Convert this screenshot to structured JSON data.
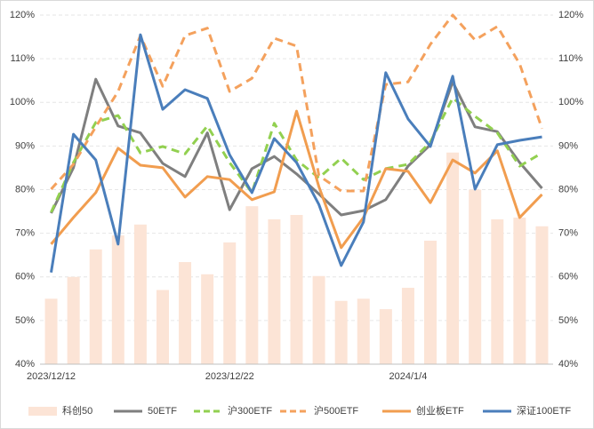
{
  "chart_data": {
    "type": "combo",
    "categories": [
      "2023/12/12",
      null,
      null,
      null,
      null,
      null,
      null,
      null,
      "2023/12/22",
      null,
      null,
      null,
      null,
      null,
      null,
      null,
      "2024/1/4",
      null,
      null,
      null,
      null,
      null,
      null
    ],
    "ylim": [
      40,
      120
    ],
    "yticks": [
      {
        "value": 40,
        "label": "40%"
      },
      {
        "value": 50,
        "label": "50%"
      },
      {
        "value": 60,
        "label": "60%"
      },
      {
        "value": 70,
        "label": "70%"
      },
      {
        "value": 80,
        "label": "80%"
      },
      {
        "value": 90,
        "label": "90%"
      },
      {
        "value": 100,
        "label": "100%"
      },
      {
        "value": 110,
        "label": "110%"
      },
      {
        "value": 120,
        "label": "120%"
      }
    ],
    "y2lim": [
      40,
      120
    ],
    "y2ticks": [
      {
        "value": 40,
        "label": "40%"
      },
      {
        "value": 50,
        "label": "50%"
      },
      {
        "value": 60,
        "label": "60%"
      },
      {
        "value": 70,
        "label": "70%"
      },
      {
        "value": 80,
        "label": "80%"
      },
      {
        "value": 90,
        "label": "90%"
      },
      {
        "value": 100,
        "label": "100%"
      },
      {
        "value": 110,
        "label": "110%"
      },
      {
        "value": 120,
        "label": "120%"
      }
    ],
    "grid": true,
    "legend": "bottom",
    "series": [
      {
        "name": "科创50",
        "kind": "bar",
        "color": "#fce4d6",
        "values": [
          55,
          60,
          66.3,
          69.5,
          72,
          57,
          63.4,
          60.6,
          67.9,
          76.2,
          73.2,
          74.2,
          60.2,
          54.5,
          55,
          52.6,
          57.5,
          68.3,
          88.5,
          80,
          73.2,
          73.6,
          71.6
        ]
      },
      {
        "name": "50ETF",
        "kind": "line",
        "dashed": false,
        "color": "#7f7f7f",
        "values": [
          74.6,
          85,
          105.3,
          94.6,
          93,
          86,
          83,
          93,
          75.4,
          84.8,
          87.6,
          83.6,
          79,
          74.2,
          75.2,
          77.7,
          85.4,
          90.3,
          104.7,
          94.4,
          93.3,
          86.2,
          80.3
        ]
      },
      {
        "name": "沪300ETF",
        "kind": "line",
        "dashed": true,
        "color": "#92d050",
        "values": [
          74.8,
          86.2,
          95.4,
          97,
          88.4,
          89.9,
          88.2,
          94.6,
          86.2,
          79.3,
          95.2,
          86.8,
          82.7,
          87.2,
          82.3,
          84.8,
          85.8,
          90.9,
          101,
          96.8,
          93,
          85.4,
          88.4
        ]
      },
      {
        "name": "沪500ETF",
        "kind": "line",
        "dashed": true,
        "color": "#f4a15d",
        "values": [
          80.1,
          85.8,
          94.4,
          102.5,
          115.3,
          103.7,
          115.3,
          117,
          102.5,
          105.5,
          114.7,
          112.9,
          83.2,
          79.7,
          79.7,
          104.1,
          104.7,
          113.3,
          120,
          114.3,
          117.4,
          108.8,
          94
        ]
      },
      {
        "name": "创业板ETF",
        "kind": "line",
        "dashed": false,
        "color": "#f19d4f",
        "values": [
          67.5,
          73.6,
          79.3,
          89.5,
          85.6,
          85,
          78.3,
          83,
          82.3,
          77.7,
          79.5,
          98,
          80.7,
          66.7,
          73.6,
          84.8,
          84.2,
          77,
          86.8,
          83.8,
          88.9,
          73.6,
          78.9
        ]
      },
      {
        "name": "深证100ETF",
        "kind": "line",
        "dashed": false,
        "color": "#4a7ebb",
        "values": [
          61,
          92.7,
          86.8,
          67.5,
          115.5,
          98.4,
          102.9,
          100.9,
          88,
          79.3,
          91.7,
          86.2,
          76.6,
          62.6,
          72.6,
          106.8,
          96.2,
          89.9,
          106,
          80.1,
          90.3,
          91.3,
          92.1
        ]
      }
    ]
  }
}
